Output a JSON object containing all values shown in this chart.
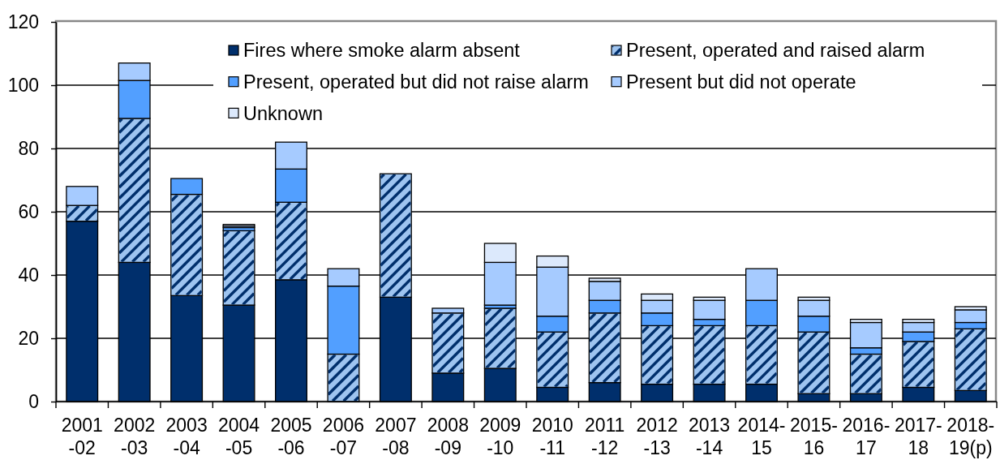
{
  "chart_data": {
    "type": "bar",
    "stacked": true,
    "categories": [
      "2001\n-02",
      "2002\n-03",
      "2003\n-04",
      "2004\n-05",
      "2005\n-06",
      "2006\n-07",
      "2007\n-08",
      "2008\n-09",
      "2009\n-10",
      "2010\n-11",
      "2011\n-12",
      "2012\n-13",
      "2013\n-14",
      "2014-\n15",
      "2015-\n16",
      "2016-\n17",
      "2017-\n18",
      "2018-\n19(p)"
    ],
    "series": [
      {
        "name": "Fires where smoke alarm absent",
        "color": "#002f6c",
        "values": [
          57,
          44,
          33.5,
          30.5,
          38.5,
          0,
          33,
          9,
          10.5,
          4.5,
          6,
          5.5,
          5.5,
          5.5,
          2.5,
          2.5,
          4.5,
          3.5
        ]
      },
      {
        "name": "Present, operated and raised alarm",
        "color": "#9ec4f0",
        "values": [
          5,
          45.5,
          32,
          23.5,
          24.5,
          15,
          39,
          19,
          19,
          17.5,
          22,
          18.5,
          18.5,
          18.5,
          19.5,
          12.5,
          14.5,
          19.5
        ]
      },
      {
        "name": "Present, operated but did not raise alarm",
        "color": "#529fff",
        "values": [
          0,
          12,
          5,
          1,
          10.5,
          21.5,
          0,
          0,
          1,
          5,
          4,
          4,
          2,
          8,
          5,
          2,
          3,
          2
        ]
      },
      {
        "name": "Present but did not operate",
        "color": "#a6cbff",
        "values": [
          6,
          5.5,
          0,
          0.5,
          8.5,
          5.5,
          0,
          1.5,
          13.5,
          15.5,
          6,
          4,
          6,
          10,
          5,
          8,
          3,
          4
        ]
      },
      {
        "name": "Unknown",
        "color": "#dce9fc",
        "values": [
          0,
          0,
          0,
          0.5,
          0,
          0,
          0,
          0,
          6,
          3.5,
          1,
          2,
          1,
          0,
          1,
          1,
          1,
          1
        ]
      }
    ],
    "ylim": [
      0,
      120
    ],
    "yticks": [
      0,
      20,
      40,
      60,
      80,
      100,
      120
    ],
    "grid": "y",
    "legend": "top"
  }
}
